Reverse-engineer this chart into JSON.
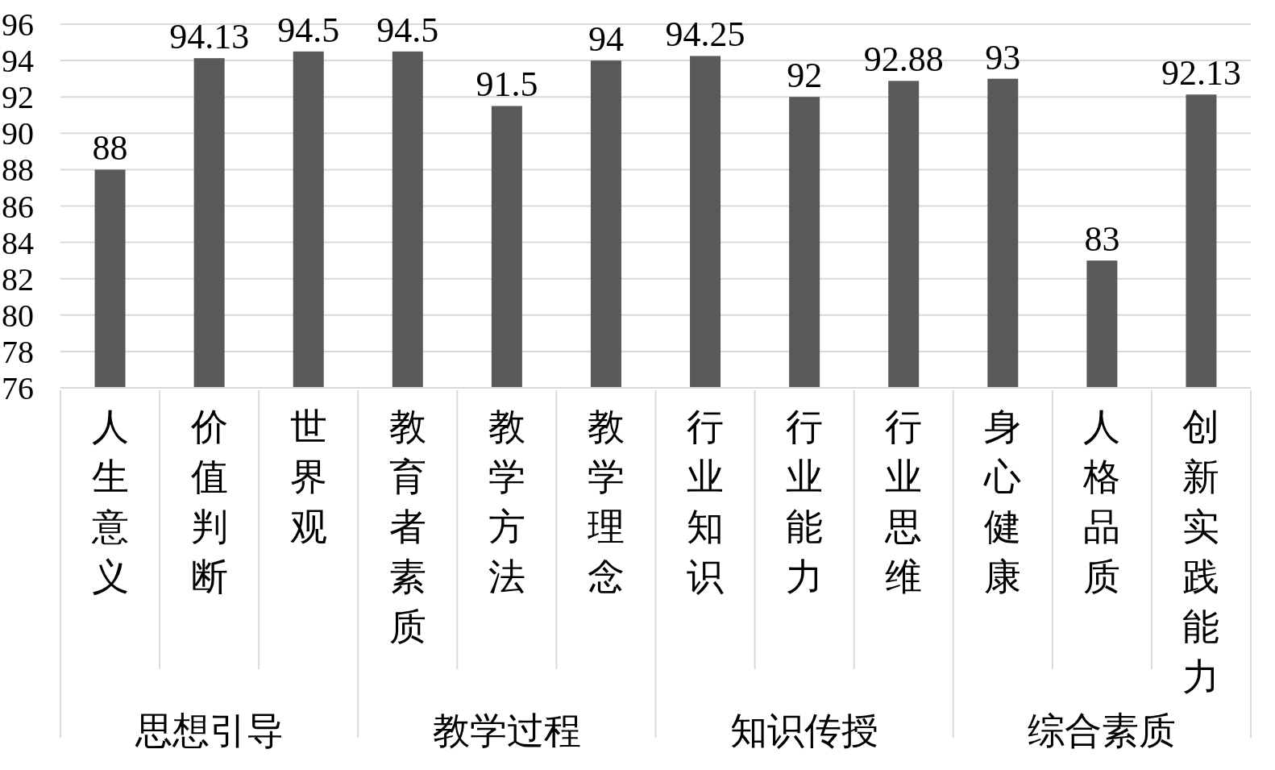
{
  "chart_data": {
    "type": "bar",
    "categories": [
      "人生意义",
      "价值判断",
      "世界观",
      "教育者素质",
      "教学方法",
      "教学理念",
      "行业知识",
      "行业能力",
      "行业思维",
      "身心健康",
      "人格品质",
      "创新实践能力"
    ],
    "values": [
      88,
      94.13,
      94.5,
      94.5,
      91.5,
      94,
      94.25,
      92,
      92.88,
      93,
      83,
      92.13
    ],
    "color": "#595959",
    "ylim": [
      76,
      96
    ],
    "yticks": [
      76,
      78,
      80,
      82,
      84,
      86,
      88,
      90,
      92,
      94,
      96
    ],
    "grid": "y",
    "data_labels": true,
    "annotations": [
      "思想引导",
      "教学过程",
      "知识传授",
      "综合素质"
    ]
  }
}
